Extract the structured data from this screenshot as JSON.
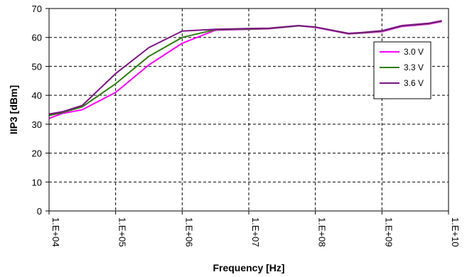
{
  "chart_data": {
    "type": "line",
    "xlabel": "Frequency [Hz]",
    "ylabel": "IIP3 [dBm]",
    "x_scale": "log",
    "xlim": [
      10000,
      10000000000
    ],
    "ylim": [
      0,
      70
    ],
    "x_ticks": [
      10000,
      100000,
      1000000,
      10000000,
      100000000,
      1000000000,
      10000000000
    ],
    "x_tick_labels": [
      "1.E+04",
      "1.E+05",
      "1.E+06",
      "1.E+07",
      "1.E+08",
      "1.E+09",
      "1.E+10"
    ],
    "y_ticks": [
      0,
      10,
      20,
      30,
      40,
      50,
      60,
      70
    ],
    "y_tick_labels": [
      "0",
      "10",
      "20",
      "30",
      "40",
      "50",
      "60",
      "70"
    ],
    "grid": true,
    "legend_position": "right",
    "series": [
      {
        "name": "3.0 V",
        "color": "#ff00ff",
        "x": [
          10000,
          15800,
          31600,
          100000,
          316000,
          1000000,
          3160000,
          10000000,
          20000000,
          56200000,
          100000000,
          316000000,
          500000000,
          1000000000,
          1260000000,
          2000000000,
          5000000000,
          7940000000
        ],
        "y": [
          32.0,
          33.7,
          35.0,
          41.0,
          50.5,
          58.0,
          62.5,
          62.8,
          63.0,
          64.0,
          63.5,
          61.2,
          61.5,
          62.0,
          62.6,
          63.8,
          64.6,
          65.5
        ]
      },
      {
        "name": "3.3 V",
        "color": "#2e7d10",
        "x": [
          10000,
          15800,
          31600,
          100000,
          316000,
          1000000,
          3160000,
          10000000,
          20000000,
          56200000,
          100000000,
          316000000,
          500000000,
          1000000000,
          1260000000,
          2000000000,
          5000000000,
          7940000000
        ],
        "y": [
          33.0,
          34.0,
          36.0,
          44.0,
          53.5,
          60.0,
          62.7,
          62.9,
          63.1,
          64.0,
          63.6,
          61.3,
          61.6,
          62.2,
          62.8,
          64.0,
          64.8,
          65.7
        ]
      },
      {
        "name": "3.6 V",
        "color": "#7b1482",
        "x": [
          10000,
          15800,
          31600,
          100000,
          316000,
          1000000,
          3160000,
          10000000,
          20000000,
          56200000,
          100000000,
          316000000,
          500000000,
          1000000000,
          1260000000,
          2000000000,
          5000000000,
          7940000000
        ],
        "y": [
          33.5,
          34.3,
          36.5,
          47.5,
          56.5,
          62.2,
          62.8,
          63.1,
          63.2,
          64.1,
          63.6,
          61.4,
          61.7,
          62.3,
          62.9,
          64.1,
          64.9,
          65.8
        ]
      }
    ]
  }
}
